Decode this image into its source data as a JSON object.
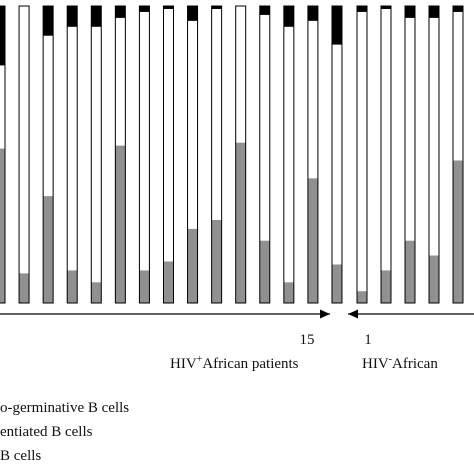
{
  "chart_data": {
    "type": "bar",
    "stacked": true,
    "normalized": true,
    "ylim": [
      0,
      100
    ],
    "series": [
      {
        "name": "B cells",
        "color": "#909090"
      },
      {
        "name": "entiated B cells",
        "color": "#ffffff"
      },
      {
        "name": "o-germinative B cells",
        "color": "#000000"
      }
    ],
    "groups": [
      {
        "name_main": "HIV",
        "name_sup": "+",
        "name_rest": "African patients",
        "tick_start": "",
        "tick_end": "15",
        "bars": [
          [
            52,
            28,
            20
          ],
          [
            10,
            90,
            0
          ],
          [
            36,
            54,
            10
          ],
          [
            11,
            82,
            7
          ],
          [
            7,
            86,
            7
          ],
          [
            53,
            43,
            4
          ],
          [
            11,
            87,
            2
          ],
          [
            14,
            85,
            1
          ],
          [
            25,
            70,
            5
          ],
          [
            28,
            71,
            1
          ],
          [
            54,
            46,
            0
          ],
          [
            21,
            76,
            3
          ],
          [
            7,
            86,
            7
          ],
          [
            42,
            53,
            5
          ],
          [
            13,
            74,
            13
          ]
        ]
      },
      {
        "name_main": "HIV",
        "name_sup": "-",
        "name_rest": "African",
        "tick_start": "1",
        "tick_end": "",
        "bars": [
          [
            4,
            94,
            2
          ],
          [
            11,
            88,
            1
          ],
          [
            21,
            75,
            4
          ],
          [
            16,
            80,
            4
          ],
          [
            48,
            50,
            2
          ],
          [
            21,
            76,
            3
          ],
          [
            11,
            86,
            3
          ]
        ]
      }
    ],
    "legend": [
      "o-germinative B cells",
      "entiated B cells",
      "B cells"
    ]
  }
}
